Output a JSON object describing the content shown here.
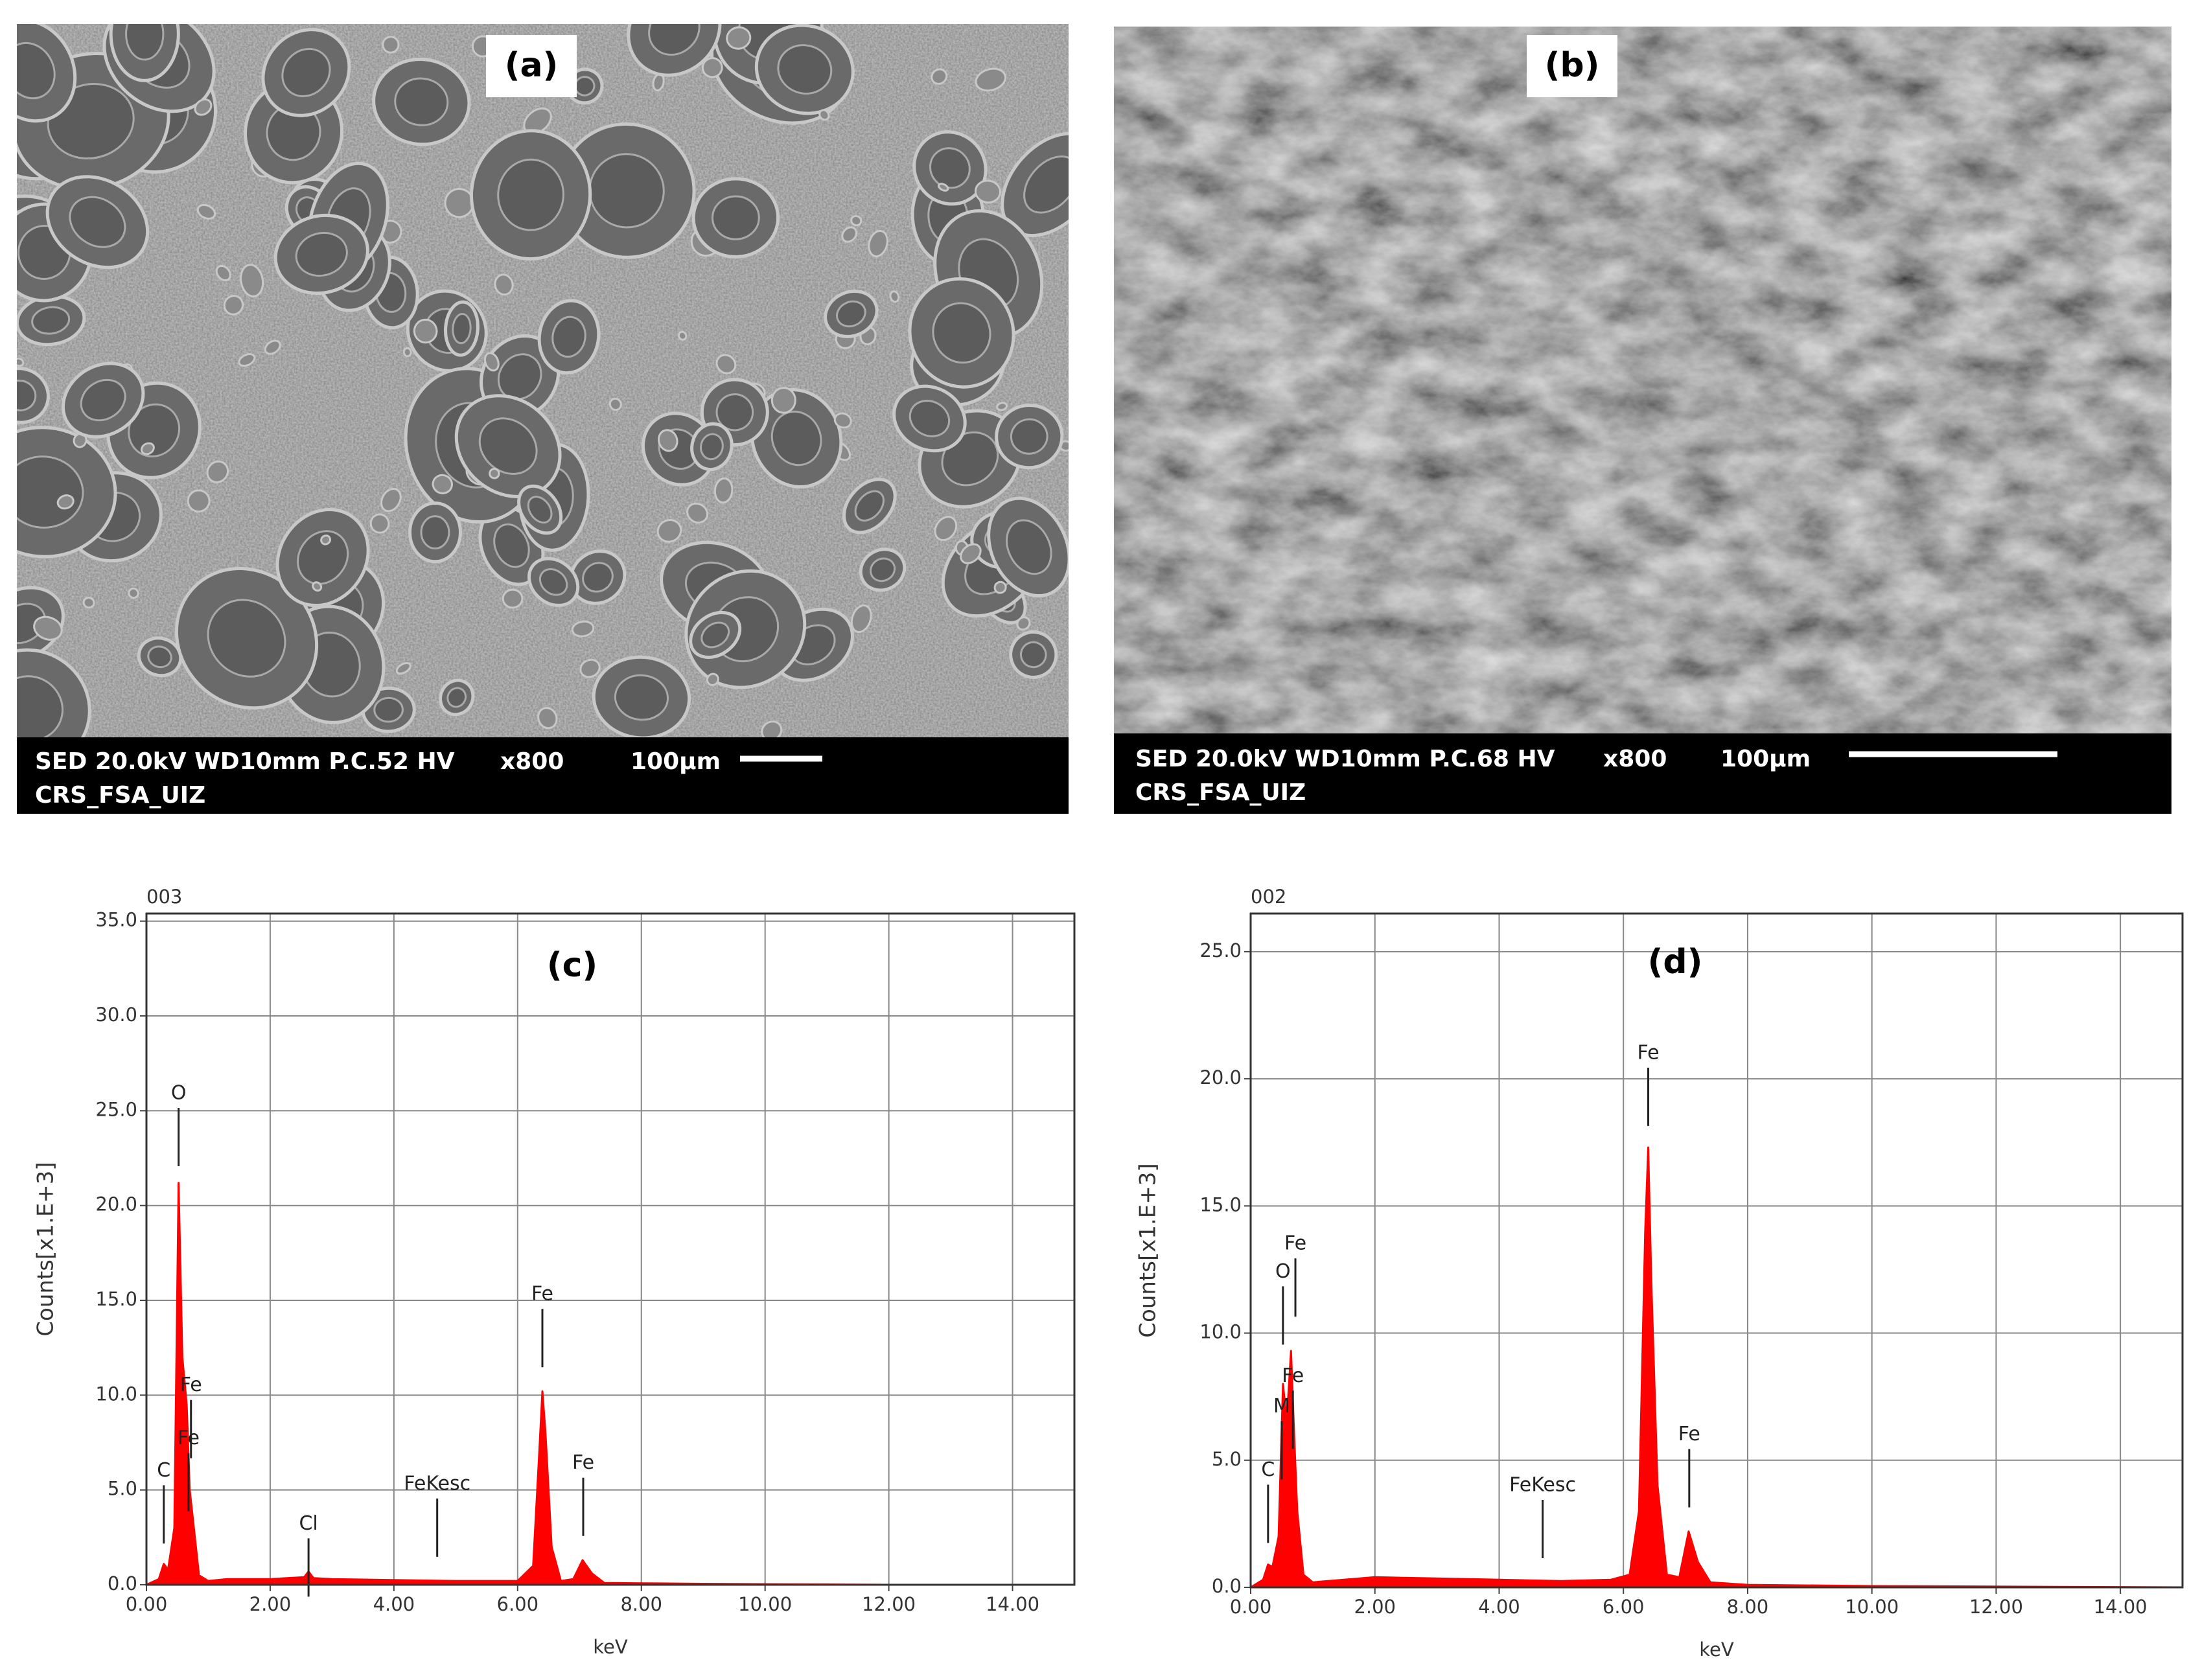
{
  "sem_images": [
    {
      "label": "(a)",
      "line1": "SED  20.0kV WD10mm P.C.52  HV",
      "magnification": "x800",
      "scale": "100µm",
      "line2": "CRS_FSA_UIZ"
    },
    {
      "label": "(b)",
      "line1": "SED  20.0kV WD10mm P.C.68  HV",
      "magnification": "x800",
      "scale": "100µm",
      "line2": "CRS_FSA_UIZ"
    }
  ],
  "chart_data": [
    {
      "type": "area",
      "spectrum_id": "003",
      "title": "(c)",
      "ylabel": "Counts[x1.E+3]",
      "xlabel": "keV",
      "color": "#ff0000",
      "grid": true,
      "xlim": [
        0,
        15
      ],
      "ylim": [
        0,
        35.4
      ],
      "xticks": [
        {
          "value": 0,
          "label": "0.00"
        },
        {
          "value": 2,
          "label": "2.00"
        },
        {
          "value": 4,
          "label": "4.00"
        },
        {
          "value": 6,
          "label": "6.00"
        },
        {
          "value": 8,
          "label": "8.00"
        },
        {
          "value": 10,
          "label": "10.00"
        },
        {
          "value": 12,
          "label": "12.00"
        },
        {
          "value": 14,
          "label": "14.00"
        }
      ],
      "yticks": [
        {
          "value": 0,
          "label": "0.0"
        },
        {
          "value": 5,
          "label": "5.0"
        },
        {
          "value": 10,
          "label": "10.0"
        },
        {
          "value": 15,
          "label": "15.0"
        },
        {
          "value": 20,
          "label": "20.0"
        },
        {
          "value": 25,
          "label": "25.0"
        },
        {
          "value": 30,
          "label": "30.0"
        },
        {
          "value": 35,
          "label": "35.0"
        }
      ],
      "x": [
        0,
        0.2,
        0.28,
        0.35,
        0.45,
        0.52,
        0.58,
        0.65,
        0.7,
        0.75,
        0.85,
        1.0,
        1.3,
        2.0,
        2.55,
        2.62,
        2.7,
        3.0,
        4.0,
        5.0,
        6.0,
        6.25,
        6.35,
        6.4,
        6.45,
        6.55,
        6.7,
        6.9,
        7.05,
        7.2,
        7.4,
        8.0,
        9.0,
        10.0,
        12.0,
        15.0
      ],
      "values": [
        0,
        0.3,
        1.1,
        0.8,
        3,
        21.2,
        12,
        9.5,
        5,
        3.5,
        0.5,
        0.2,
        0.3,
        0.3,
        0.4,
        0.7,
        0.35,
        0.3,
        0.25,
        0.2,
        0.2,
        1,
        7,
        10.2,
        8,
        2,
        0.2,
        0.3,
        1.3,
        0.6,
        0.1,
        0.08,
        0.05,
        0.03,
        0,
        0
      ],
      "peak_labels": [
        {
          "text": "C",
          "x": 0.28,
          "y": 6.0
        },
        {
          "text": "O",
          "x": 0.52,
          "y": 25.9
        },
        {
          "text": "Fe",
          "x": 0.72,
          "y": 10.5
        },
        {
          "text": "Fe",
          "x": 0.68,
          "y": 7.7
        },
        {
          "text": "Cl",
          "x": 2.62,
          "y": 3.2
        },
        {
          "text": "FeKesc",
          "x": 4.7,
          "y": 5.3
        },
        {
          "text": "Fe",
          "x": 6.4,
          "y": 15.3
        },
        {
          "text": "Fe",
          "x": 7.06,
          "y": 6.4
        }
      ]
    },
    {
      "type": "area",
      "spectrum_id": "002",
      "title": "(d)",
      "ylabel": "Counts[x1.E+3]",
      "xlabel": "keV",
      "color": "#ff0000",
      "grid": true,
      "xlim": [
        0,
        15
      ],
      "ylim": [
        0,
        26.5
      ],
      "xticks": [
        {
          "value": 0,
          "label": "0.00"
        },
        {
          "value": 2,
          "label": "2.00"
        },
        {
          "value": 4,
          "label": "4.00"
        },
        {
          "value": 6,
          "label": "6.00"
        },
        {
          "value": 8,
          "label": "8.00"
        },
        {
          "value": 10,
          "label": "10.00"
        },
        {
          "value": 12,
          "label": "12.00"
        },
        {
          "value": 14,
          "label": "14.00"
        }
      ],
      "yticks": [
        {
          "value": 0,
          "label": "0.0"
        },
        {
          "value": 5,
          "label": "5.0"
        },
        {
          "value": 10,
          "label": "10.0"
        },
        {
          "value": 15,
          "label": "15.0"
        },
        {
          "value": 20,
          "label": "20.0"
        },
        {
          "value": 25,
          "label": "25.0"
        }
      ],
      "x": [
        0,
        0.2,
        0.28,
        0.35,
        0.45,
        0.52,
        0.58,
        0.65,
        0.7,
        0.75,
        0.85,
        1.0,
        1.5,
        2.0,
        3.0,
        4.0,
        5.0,
        5.8,
        6.1,
        6.25,
        6.35,
        6.4,
        6.45,
        6.55,
        6.7,
        6.9,
        7.05,
        7.2,
        7.4,
        8.0,
        10.0,
        13.0,
        15.0
      ],
      "values": [
        0,
        0.3,
        0.9,
        0.8,
        2,
        8,
        6.5,
        9.3,
        6,
        3,
        0.5,
        0.2,
        0.3,
        0.4,
        0.35,
        0.3,
        0.25,
        0.3,
        0.5,
        3,
        14,
        17.3,
        12,
        4,
        0.5,
        0.4,
        2.2,
        1,
        0.2,
        0.1,
        0.05,
        0.02,
        0
      ],
      "peak_labels": [
        {
          "text": "C",
          "x": 0.28,
          "y": 4.6
        },
        {
          "text": "M",
          "x": 0.5,
          "y": 7.1
        },
        {
          "text": "O",
          "x": 0.52,
          "y": 12.4
        },
        {
          "text": "Fe",
          "x": 0.72,
          "y": 13.5
        },
        {
          "text": "Fe",
          "x": 0.68,
          "y": 8.3
        },
        {
          "text": "FeKesc",
          "x": 4.7,
          "y": 4.0
        },
        {
          "text": "Fe",
          "x": 6.4,
          "y": 21.0
        },
        {
          "text": "Fe",
          "x": 7.06,
          "y": 6.0
        }
      ]
    }
  ]
}
